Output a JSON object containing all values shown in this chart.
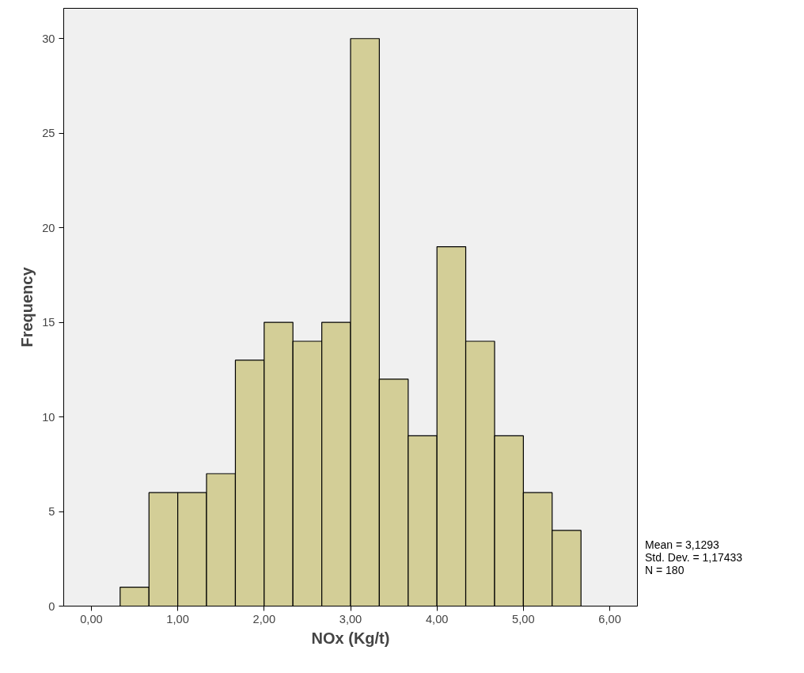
{
  "chart_data": {
    "type": "histogram",
    "xlabel": "NOx (Kg/t)",
    "ylabel": "Frequency",
    "bins": [
      0.333,
      0.667,
      1.0,
      1.333,
      1.667,
      2.0,
      2.333,
      2.667,
      3.0,
      3.333,
      3.667,
      4.0,
      4.333,
      4.667,
      5.0,
      5.333,
      5.667
    ],
    "values": [
      1,
      6,
      6,
      7,
      13,
      15,
      14,
      15,
      30,
      12,
      9,
      19,
      14,
      9,
      6,
      4
    ],
    "color": "#d3ce97",
    "xlim": [
      -0.32,
      6.32
    ],
    "ylim": [
      0,
      31.6
    ],
    "xticks": [
      {
        "value": 0,
        "label": "0,00"
      },
      {
        "value": 1,
        "label": "1,00"
      },
      {
        "value": 2,
        "label": "2,00"
      },
      {
        "value": 3,
        "label": "3,00"
      },
      {
        "value": 4,
        "label": "4,00"
      },
      {
        "value": 5,
        "label": "5,00"
      },
      {
        "value": 6,
        "label": "6,00"
      }
    ],
    "yticks": [
      0,
      5,
      10,
      15,
      20,
      25,
      30
    ],
    "grid": false,
    "annotations": [
      "Mean = 3,1293",
      "Std. Dev. = 1,17433",
      "N = 180"
    ]
  }
}
